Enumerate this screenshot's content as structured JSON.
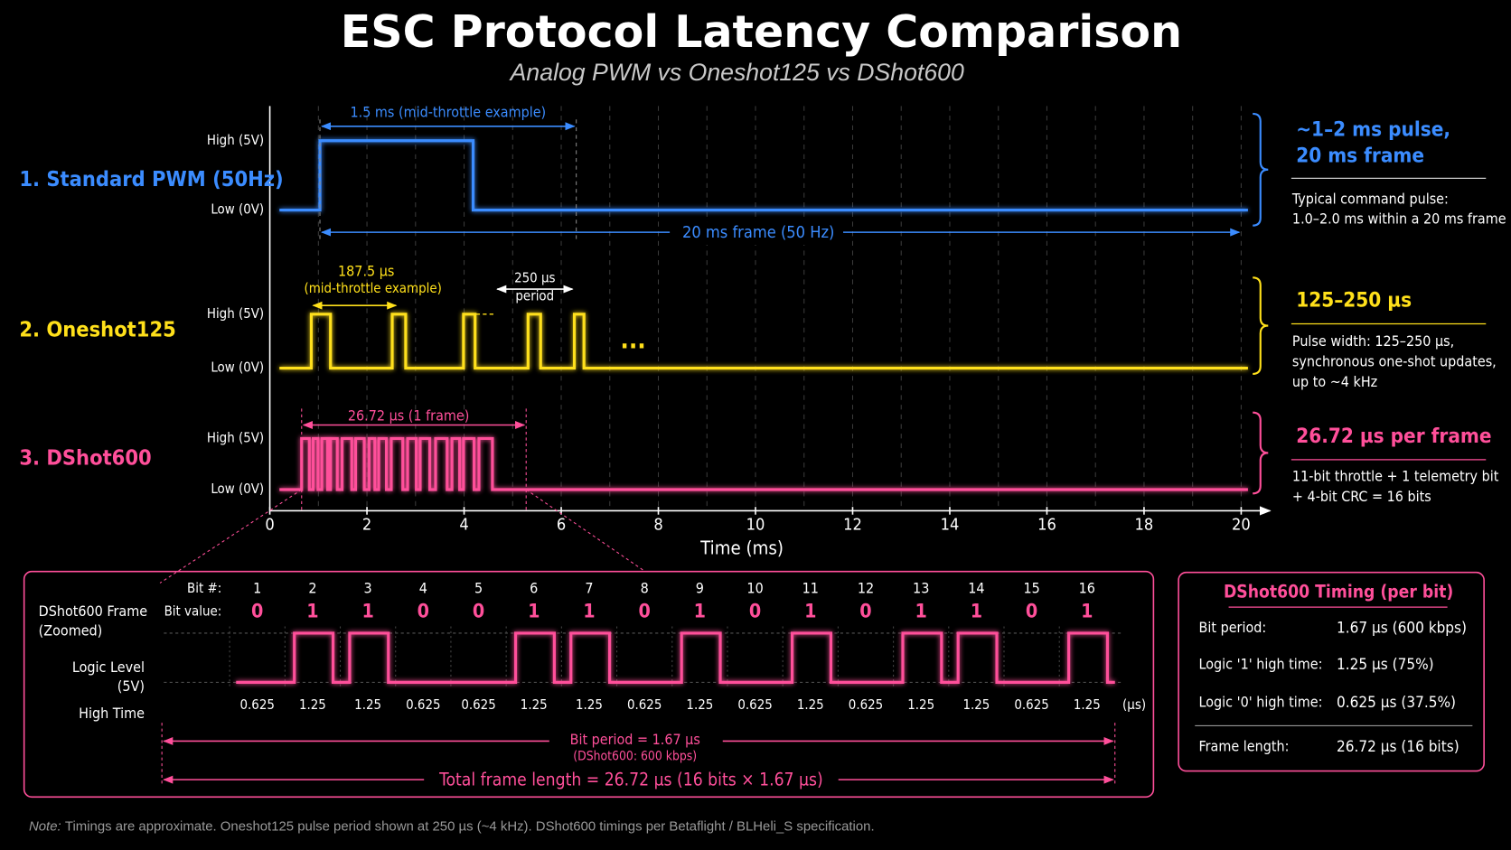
{
  "title": "ESC Protocol Latency Comparison",
  "subtitle": "Analog PWM vs Oneshot125 vs DShot600",
  "levels": {
    "high": "High (5V)",
    "low": "Low (0V)"
  },
  "axis": {
    "label": "Time (ms)",
    "ticks": [
      0,
      2,
      4,
      6,
      8,
      10,
      12,
      14,
      16,
      18,
      20
    ]
  },
  "protocols": [
    {
      "name": "1. Standard PWM (50Hz)",
      "color": "#3b8cff",
      "annotations": [
        "1.5 ms (mid-throttle example)",
        "20 ms frame (50 Hz)"
      ],
      "heading": [
        "~1–2 ms pulse,",
        "20 ms frame"
      ],
      "text": [
        "Typical command pulse:",
        "1.0–2.0 ms within a 20 ms frame"
      ]
    },
    {
      "name": "2. Oneshot125",
      "color": "#ffe01a",
      "annotations": [
        "187.5 µs",
        "(mid-throttle example)",
        "250 µs",
        "period",
        "..."
      ],
      "heading": [
        "125–250 µs"
      ],
      "text": [
        "Pulse width: 125–250 µs,",
        "synchronous one-shot updates,",
        "up to ~4 kHz"
      ]
    },
    {
      "name": "3. DShot600",
      "color": "#ff4f9a",
      "annotations": [
        "26.72 µs (1 frame)"
      ],
      "heading": [
        "26.72 µs per frame"
      ],
      "text": [
        "11-bit throttle + 1 telemetry bit",
        "+ 4-bit CRC = 16 bits"
      ]
    }
  ],
  "zoom": {
    "frame_label": [
      "DShot600 Frame",
      "(Zoomed)"
    ],
    "bit_num_label": "Bit #:",
    "bit_value_label": "Bit value:",
    "logic_label": [
      "Logic Level",
      "(5V)"
    ],
    "high_time_label": "High Time",
    "unit": "(µs)",
    "bit_numbers": [
      1,
      2,
      3,
      4,
      5,
      6,
      7,
      8,
      9,
      10,
      11,
      12,
      13,
      14,
      15,
      16
    ],
    "bits": [
      0,
      1,
      1,
      0,
      0,
      1,
      1,
      0,
      1,
      0,
      1,
      0,
      1,
      1,
      0,
      1
    ],
    "high_times": [
      0.625,
      1.25,
      1.25,
      0.625,
      0.625,
      1.25,
      1.25,
      0.625,
      1.25,
      0.625,
      1.25,
      0.625,
      1.25,
      1.25,
      0.625,
      1.25
    ],
    "bit_period": [
      "Bit period = 1.67 µs",
      "(DShot600: 600 kbps)"
    ],
    "total": "Total frame length = 26.72 µs (16 bits × 1.67 µs)"
  },
  "timing": {
    "title": "DShot600 Timing (per bit)",
    "rows": [
      [
        "Bit period:",
        "1.67 µs (600 kbps)"
      ],
      [
        "Logic '1' high time:",
        "1.25 µs (75%)"
      ],
      [
        "Logic '0' high time:",
        "0.625 µs (37.5%)"
      ],
      [
        "Frame length:",
        "26.72 µs (16 bits)"
      ]
    ]
  },
  "note": {
    "label": "Note:",
    "text": "Timings are approximate. Oneshot125 pulse period shown at 250 µs (~4 kHz). DShot600 timings per Betaflight / BLHeli_S specification."
  }
}
